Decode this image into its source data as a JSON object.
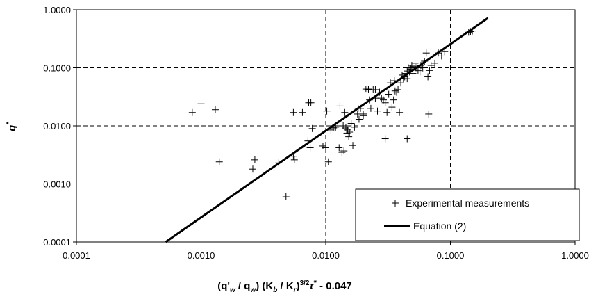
{
  "chart_data": {
    "type": "scatter",
    "xscale": "log",
    "yscale": "log",
    "xlim": [
      0.0001,
      1.0
    ],
    "ylim": [
      0.0001,
      1.0
    ],
    "x_ticks": [
      0.0001,
      0.001,
      0.01,
      0.1,
      1.0
    ],
    "x_tick_labels": [
      "0.0001",
      "0.0010",
      "0.0100",
      "0.1000",
      "1.0000"
    ],
    "y_ticks": [
      0.0001,
      0.001,
      0.01,
      0.1,
      1.0
    ],
    "y_tick_labels": [
      "0.0001",
      "0.0010",
      "0.0100",
      "0.1000",
      "1.0000"
    ],
    "xlabel": "(q'w / qw) (Kb / Kr)3/2τ* - 0.047",
    "ylabel": "q*",
    "grid": true,
    "legend_position": "bottom-right",
    "series": [
      {
        "name": "Experimental measurements",
        "marker": "plus",
        "color": "#000000",
        "points": [
          [
            0.00085,
            0.017
          ],
          [
            0.001,
            0.024
          ],
          [
            0.0013,
            0.019
          ],
          [
            0.0014,
            0.0024
          ],
          [
            0.0026,
            0.0018
          ],
          [
            0.0027,
            0.0026
          ],
          [
            0.0042,
            0.0023
          ],
          [
            0.0048,
            0.0006
          ],
          [
            0.0055,
            0.003
          ],
          [
            0.0056,
            0.0026
          ],
          [
            0.0055,
            0.017
          ],
          [
            0.0065,
            0.017
          ],
          [
            0.0072,
            0.0055
          ],
          [
            0.0073,
            0.025
          ],
          [
            0.0075,
            0.0042
          ],
          [
            0.0076,
            0.025
          ],
          [
            0.0078,
            0.009
          ],
          [
            0.0095,
            0.0045
          ],
          [
            0.01,
            0.0042
          ],
          [
            0.0102,
            0.018
          ],
          [
            0.0105,
            0.0024
          ],
          [
            0.011,
            0.0085
          ],
          [
            0.0115,
            0.0092
          ],
          [
            0.012,
            0.0095
          ],
          [
            0.0125,
            0.01
          ],
          [
            0.0128,
            0.0042
          ],
          [
            0.013,
            0.022
          ],
          [
            0.0135,
            0.0035
          ],
          [
            0.0138,
            0.01
          ],
          [
            0.014,
            0.0037
          ],
          [
            0.0142,
            0.017
          ],
          [
            0.0145,
            0.0092
          ],
          [
            0.0148,
            0.0075
          ],
          [
            0.015,
            0.0085
          ],
          [
            0.0153,
            0.0065
          ],
          [
            0.0155,
            0.0078
          ],
          [
            0.016,
            0.011
          ],
          [
            0.0165,
            0.0046
          ],
          [
            0.017,
            0.0095
          ],
          [
            0.018,
            0.016
          ],
          [
            0.0182,
            0.02
          ],
          [
            0.0185,
            0.013
          ],
          [
            0.019,
            0.02
          ],
          [
            0.02,
            0.016
          ],
          [
            0.021,
            0.043
          ],
          [
            0.022,
            0.042
          ],
          [
            0.0225,
            0.028
          ],
          [
            0.023,
            0.02
          ],
          [
            0.024,
            0.042
          ],
          [
            0.025,
            0.03
          ],
          [
            0.026,
            0.018
          ],
          [
            0.027,
            0.038
          ],
          [
            0.028,
            0.03
          ],
          [
            0.029,
            0.028
          ],
          [
            0.03,
            0.025
          ],
          [
            0.031,
            0.017
          ],
          [
            0.032,
            0.035
          ],
          [
            0.033,
            0.055
          ],
          [
            0.034,
            0.021
          ],
          [
            0.035,
            0.028
          ],
          [
            0.0355,
            0.06
          ],
          [
            0.036,
            0.04
          ],
          [
            0.037,
            0.038
          ],
          [
            0.038,
            0.042
          ],
          [
            0.039,
            0.017
          ],
          [
            0.04,
            0.055
          ],
          [
            0.041,
            0.075
          ],
          [
            0.042,
            0.065
          ],
          [
            0.043,
            0.07
          ],
          [
            0.044,
            0.08
          ],
          [
            0.045,
            0.088
          ],
          [
            0.046,
            0.1
          ],
          [
            0.047,
            0.085
          ],
          [
            0.048,
            0.095
          ],
          [
            0.049,
            0.11
          ],
          [
            0.05,
            0.105
          ],
          [
            0.052,
            0.12
          ],
          [
            0.053,
            0.1
          ],
          [
            0.055,
            0.09
          ],
          [
            0.057,
            0.085
          ],
          [
            0.058,
            0.11
          ],
          [
            0.06,
            0.1
          ],
          [
            0.062,
            0.13
          ],
          [
            0.064,
            0.18
          ],
          [
            0.066,
            0.07
          ],
          [
            0.067,
            0.016
          ],
          [
            0.068,
            0.09
          ],
          [
            0.07,
            0.11
          ],
          [
            0.075,
            0.12
          ],
          [
            0.08,
            0.18
          ],
          [
            0.085,
            0.16
          ],
          [
            0.09,
            0.19
          ],
          [
            0.045,
            0.006
          ],
          [
            0.03,
            0.006
          ],
          [
            0.025,
            0.042
          ],
          [
            0.022,
            0.043
          ],
          [
            0.145,
            0.42
          ],
          [
            0.14,
            0.41
          ],
          [
            0.15,
            0.43
          ],
          [
            0.02,
            0.015
          ],
          [
            0.045,
            0.065
          ],
          [
            0.05,
            0.08
          ]
        ]
      },
      {
        "name": "Equation (2)",
        "type": "line",
        "color": "#000000",
        "points": [
          [
            0.00052,
            0.0001
          ],
          [
            0.2,
            0.72
          ]
        ]
      }
    ]
  }
}
